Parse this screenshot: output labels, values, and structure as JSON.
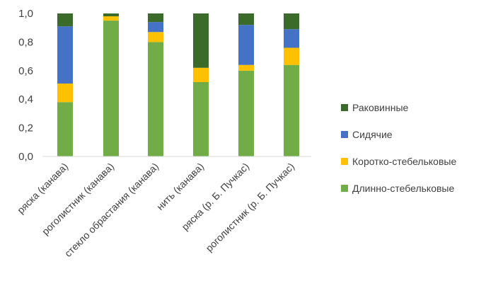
{
  "chart_data": {
    "type": "bar",
    "stacked": true,
    "categories": [
      "ряска (канава)",
      "роголистник (канава)",
      "стекло обрастания (канава)",
      "нить (канава)",
      "ряска (р. Б. Пучкас)",
      "роголистник (р. Б. Пучкас)"
    ],
    "series": [
      {
        "name": "Длинно-стебельковые",
        "color": "#70AD47",
        "values": [
          0.38,
          0.95,
          0.8,
          0.52,
          0.6,
          0.64
        ]
      },
      {
        "name": "Коротко-стебельковые",
        "color": "#FFC000",
        "values": [
          0.13,
          0.03,
          0.07,
          0.1,
          0.04,
          0.12
        ]
      },
      {
        "name": "Сидячие",
        "color": "#4472C4",
        "values": [
          0.4,
          0.0,
          0.07,
          0.0,
          0.28,
          0.13
        ]
      },
      {
        "name": "Раковинные",
        "color": "#3A6B2A",
        "values": [
          0.09,
          0.02,
          0.06,
          0.38,
          0.08,
          0.11
        ]
      }
    ],
    "ylim": [
      0,
      1
    ],
    "yticks": [
      "0,0",
      "0,2",
      "0,4",
      "0,6",
      "0,8",
      "1,0"
    ],
    "xlabel": "",
    "ylabel": "",
    "title": "",
    "grid": false,
    "legend_position": "right",
    "legend_order": [
      "Раковинные",
      "Сидячие",
      "Коротко-стебельковые",
      "Длинно-стебельковые"
    ]
  }
}
